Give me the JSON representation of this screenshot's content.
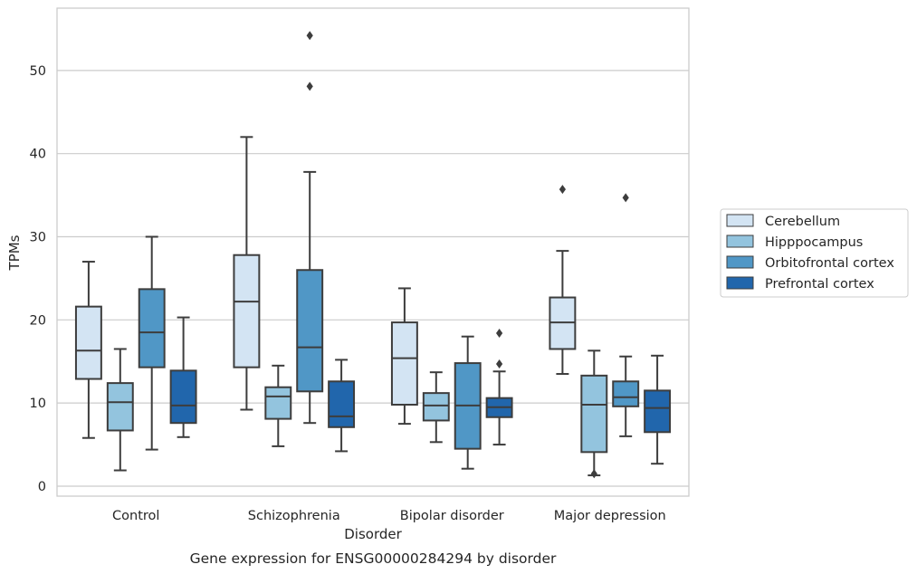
{
  "chart_data": {
    "type": "box",
    "caption": "Gene expression for ENSG00000284294 by disorder",
    "xlabel": "Disorder",
    "ylabel": "TPMs",
    "ylim": [
      -1.2,
      57.5
    ],
    "yticks": [
      0,
      10,
      20,
      30,
      40,
      50
    ],
    "grid": "horizontal",
    "legend_position": "right",
    "categories": [
      "Control",
      "Schizophrenia",
      "Bipolar disorder",
      "Major depression"
    ],
    "series": [
      {
        "name": "Cerebellum",
        "color": "#d3e4f3",
        "boxes": [
          {
            "whislo": 5.8,
            "q1": 12.9,
            "med": 16.3,
            "q3": 21.6,
            "whishi": 27.0,
            "fliers": []
          },
          {
            "whislo": 9.2,
            "q1": 14.3,
            "med": 22.2,
            "q3": 27.8,
            "whishi": 42.0,
            "fliers": []
          },
          {
            "whislo": 7.5,
            "q1": 9.8,
            "med": 15.4,
            "q3": 19.7,
            "whishi": 23.8,
            "fliers": []
          },
          {
            "whislo": 13.5,
            "q1": 16.5,
            "med": 19.7,
            "q3": 22.7,
            "whishi": 28.3,
            "fliers": [
              35.7
            ]
          }
        ]
      },
      {
        "name": "Hipppocampus",
        "color": "#93c4de",
        "boxes": [
          {
            "whislo": 1.9,
            "q1": 6.7,
            "med": 10.1,
            "q3": 12.4,
            "whishi": 16.5,
            "fliers": []
          },
          {
            "whislo": 4.8,
            "q1": 8.1,
            "med": 10.8,
            "q3": 11.9,
            "whishi": 14.5,
            "fliers": []
          },
          {
            "whislo": 5.3,
            "q1": 7.9,
            "med": 9.7,
            "q3": 11.2,
            "whishi": 13.7,
            "fliers": []
          },
          {
            "whislo": 1.3,
            "q1": 4.1,
            "med": 9.8,
            "q3": 13.3,
            "whishi": 16.3,
            "fliers": [
              1.5
            ]
          }
        ]
      },
      {
        "name": "Orbitofrontal cortex",
        "color": "#5097c6",
        "boxes": [
          {
            "whislo": 4.4,
            "q1": 14.3,
            "med": 18.5,
            "q3": 23.7,
            "whishi": 30.0,
            "fliers": []
          },
          {
            "whislo": 7.6,
            "q1": 11.4,
            "med": 16.7,
            "q3": 26.0,
            "whishi": 37.8,
            "fliers": [
              48.1,
              54.2
            ]
          },
          {
            "whislo": 2.1,
            "q1": 4.5,
            "med": 9.7,
            "q3": 14.8,
            "whishi": 18.0,
            "fliers": []
          },
          {
            "whislo": 6.0,
            "q1": 9.6,
            "med": 10.7,
            "q3": 12.6,
            "whishi": 15.6,
            "fliers": [
              34.7
            ]
          }
        ]
      },
      {
        "name": "Prefrontal cortex",
        "color": "#2166ac",
        "boxes": [
          {
            "whislo": 5.9,
            "q1": 7.6,
            "med": 9.7,
            "q3": 13.9,
            "whishi": 20.3,
            "fliers": []
          },
          {
            "whislo": 4.2,
            "q1": 7.1,
            "med": 8.4,
            "q3": 12.6,
            "whishi": 15.2,
            "fliers": []
          },
          {
            "whislo": 5.0,
            "q1": 8.3,
            "med": 9.5,
            "q3": 10.6,
            "whishi": 13.8,
            "fliers": [
              14.7,
              18.4
            ]
          },
          {
            "whislo": 2.7,
            "q1": 6.5,
            "med": 9.4,
            "q3": 11.5,
            "whishi": 15.7,
            "fliers": []
          }
        ]
      }
    ]
  }
}
